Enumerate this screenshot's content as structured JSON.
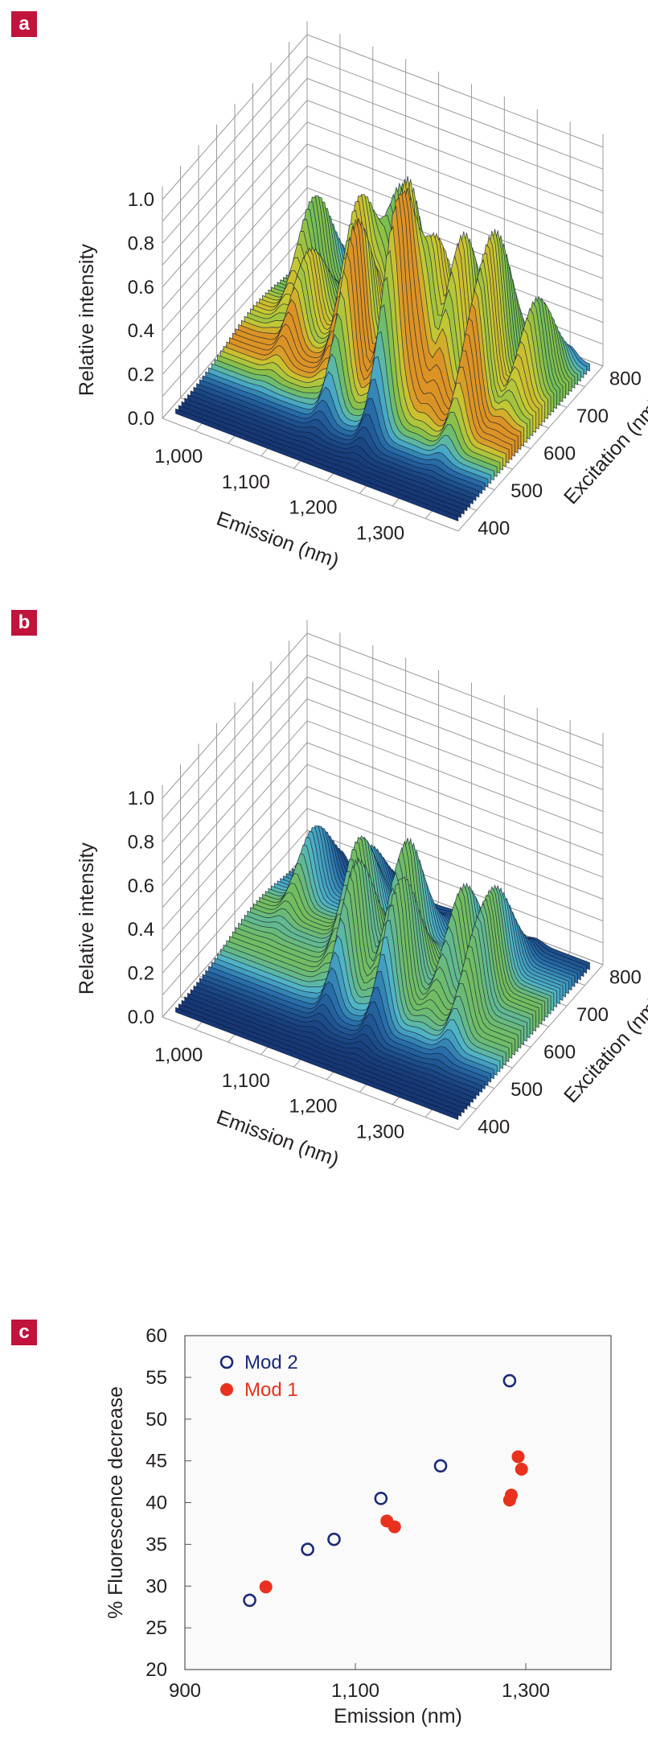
{
  "panels": {
    "a": {
      "badge": "a",
      "zlabel": "Relative intensity",
      "xlabel": "Emission (nm)",
      "ylabel": "Excitation (nm)",
      "zticks": [
        "0.0",
        "0.2",
        "0.4",
        "0.6",
        "0.8",
        "1.0"
      ],
      "xticks": [
        "1,000",
        "1,100",
        "1,200",
        "1,300"
      ],
      "yticks": [
        "400",
        "500",
        "600",
        "700",
        "800"
      ],
      "zlim": [
        0,
        1
      ],
      "peaks": [
        {
          "emission": 1000,
          "excitation": 720,
          "intensity": 0.45
        },
        {
          "emission": 1030,
          "excitation": 640,
          "intensity": 0.34
        },
        {
          "emission": 1080,
          "excitation": 720,
          "intensity": 0.42
        },
        {
          "emission": 1100,
          "excitation": 650,
          "intensity": 0.62
        },
        {
          "emission": 1120,
          "excitation": 740,
          "intensity": 0.6
        },
        {
          "emission": 1130,
          "excitation": 580,
          "intensity": 0.71
        },
        {
          "emission": 1170,
          "excitation": 650,
          "intensity": 0.82
        },
        {
          "emission": 1200,
          "excitation": 570,
          "intensity": 0.95
        },
        {
          "emission": 1220,
          "excitation": 640,
          "intensity": 0.58
        },
        {
          "emission": 1250,
          "excitation": 660,
          "intensity": 0.64
        },
        {
          "emission": 1290,
          "excitation": 680,
          "intensity": 0.6
        },
        {
          "emission": 1300,
          "excitation": 600,
          "intensity": 0.44
        },
        {
          "emission": 1340,
          "excitation": 700,
          "intensity": 0.4
        }
      ]
    },
    "b": {
      "badge": "b",
      "zlabel": "Relative intensity",
      "xlabel": "Emission (nm)",
      "ylabel": "Excitation (nm)",
      "zticks": [
        "0.0",
        "0.2",
        "0.4",
        "0.6",
        "0.8",
        "1.0"
      ],
      "xticks": [
        "1,000",
        "1,100",
        "1,200",
        "1,300"
      ],
      "yticks": [
        "400",
        "500",
        "600",
        "700",
        "800"
      ],
      "zlim": [
        0,
        1
      ],
      "peaks": [
        {
          "emission": 1000,
          "excitation": 720,
          "intensity": 0.3
        },
        {
          "emission": 1080,
          "excitation": 720,
          "intensity": 0.28
        },
        {
          "emission": 1100,
          "excitation": 650,
          "intensity": 0.44
        },
        {
          "emission": 1130,
          "excitation": 580,
          "intensity": 0.52
        },
        {
          "emission": 1170,
          "excitation": 650,
          "intensity": 0.53
        },
        {
          "emission": 1200,
          "excitation": 570,
          "intensity": 0.55
        },
        {
          "emission": 1250,
          "excitation": 660,
          "intensity": 0.4
        },
        {
          "emission": 1290,
          "excitation": 680,
          "intensity": 0.36
        },
        {
          "emission": 1300,
          "excitation": 600,
          "intensity": 0.32
        }
      ]
    }
  },
  "chart_data": [
    {
      "type": "scatter",
      "title": "",
      "xlabel": "Emission (nm)",
      "ylabel": "% Fluorescence decrease",
      "xlim": [
        900,
        1400
      ],
      "ylim": [
        20,
        60
      ],
      "xticks": [
        "900",
        "1,100",
        "1,300"
      ],
      "xtick_values": [
        900,
        1100,
        1300
      ],
      "yticks": [
        "20",
        "25",
        "30",
        "35",
        "40",
        "45",
        "50",
        "55",
        "60"
      ],
      "ytick_values": [
        20,
        25,
        30,
        35,
        40,
        45,
        50,
        55,
        60
      ],
      "legend_position": "top-left",
      "series": [
        {
          "name": "Mod 2",
          "color": "#1a2a7a",
          "marker": "open-circle",
          "points": [
            {
              "x": 976,
              "y": 28.3
            },
            {
              "x": 1044,
              "y": 34.4
            },
            {
              "x": 1075,
              "y": 35.6
            },
            {
              "x": 1130,
              "y": 40.5
            },
            {
              "x": 1200,
              "y": 44.4
            },
            {
              "x": 1281,
              "y": 54.6
            }
          ]
        },
        {
          "name": "Mod 1",
          "color": "#e8321e",
          "marker": "filled-circle",
          "points": [
            {
              "x": 995,
              "y": 29.9
            },
            {
              "x": 1137,
              "y": 37.8
            },
            {
              "x": 1146,
              "y": 37.1
            },
            {
              "x": 1281,
              "y": 40.3
            },
            {
              "x": 1283,
              "y": 40.9
            },
            {
              "x": 1291,
              "y": 45.5
            },
            {
              "x": 1295,
              "y": 44.0
            }
          ]
        }
      ]
    }
  ]
}
